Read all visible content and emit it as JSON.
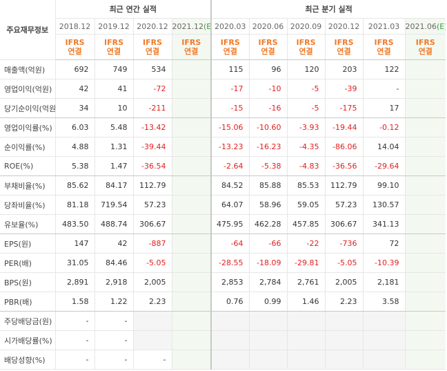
{
  "table": {
    "row_header": "주요재무정보",
    "groups": [
      "최근 연간 실적",
      "최근 분기 실적"
    ],
    "columns": [
      {
        "period": "2018.12",
        "standard": "IFRS",
        "scope": "연결"
      },
      {
        "period": "2019.12",
        "standard": "IFRS",
        "scope": "연결"
      },
      {
        "period": "2020.12",
        "standard": "IFRS",
        "scope": "연결"
      },
      {
        "period": "2021.12",
        "estimate": "(E)",
        "standard": "IFRS",
        "scope": "연결"
      },
      {
        "period": "2020.03",
        "standard": "IFRS",
        "scope": "연결"
      },
      {
        "period": "2020.06",
        "standard": "IFRS",
        "scope": "연결"
      },
      {
        "period": "2020.09",
        "standard": "IFRS",
        "scope": "연결"
      },
      {
        "period": "2020.12",
        "standard": "IFRS",
        "scope": "연결"
      },
      {
        "period": "2021.03",
        "standard": "IFRS",
        "scope": "연결"
      },
      {
        "period": "2021.06",
        "estimate": "(E)",
        "standard": "IFRS",
        "scope": "연결"
      }
    ],
    "rows": [
      {
        "label": "매출액(억원)",
        "cells": [
          "692",
          "749",
          "534",
          null,
          "115",
          "96",
          "120",
          "203",
          "122",
          null
        ]
      },
      {
        "label": "영업이익(억원)",
        "cells": [
          "42",
          "41",
          "-72",
          null,
          "-17",
          "-10",
          "-5",
          "-39",
          "-",
          null
        ]
      },
      {
        "label": "당기순이익(억원)",
        "cells": [
          "34",
          "10",
          "-211",
          null,
          "-15",
          "-16",
          "-5",
          "-175",
          "17",
          null
        ]
      },
      {
        "label": "영업이익률(%)",
        "cells": [
          "6.03",
          "5.48",
          "-13.42",
          null,
          "-15.06",
          "-10.60",
          "-3.93",
          "-19.44",
          "-0.12",
          null
        ]
      },
      {
        "label": "순이익률(%)",
        "cells": [
          "4.88",
          "1.31",
          "-39.44",
          null,
          "-13.23",
          "-16.23",
          "-4.35",
          "-86.06",
          "14.04",
          null
        ]
      },
      {
        "label": "ROE(%)",
        "cells": [
          "5.38",
          "1.47",
          "-36.54",
          null,
          "-2.64",
          "-5.38",
          "-4.83",
          "-36.56",
          "-29.64",
          null
        ]
      },
      {
        "label": "부채비율(%)",
        "cells": [
          "85.62",
          "84.17",
          "112.79",
          null,
          "84.52",
          "85.88",
          "85.53",
          "112.79",
          "99.10",
          null
        ]
      },
      {
        "label": "당좌비율(%)",
        "cells": [
          "81.18",
          "719.54",
          "57.23",
          null,
          "64.07",
          "58.96",
          "59.05",
          "57.23",
          "130.57",
          null
        ]
      },
      {
        "label": "유보율(%)",
        "cells": [
          "483.50",
          "488.74",
          "306.67",
          null,
          "475.95",
          "462.28",
          "457.85",
          "306.67",
          "341.13",
          null
        ]
      },
      {
        "label": "EPS(원)",
        "cells": [
          "147",
          "42",
          "-887",
          null,
          "-64",
          "-66",
          "-22",
          "-736",
          "72",
          null
        ]
      },
      {
        "label": "PER(배)",
        "cells": [
          "31.05",
          "84.46",
          "-5.05",
          null,
          "-28.55",
          "-18.09",
          "-29.81",
          "-5.05",
          "-10.39",
          null
        ]
      },
      {
        "label": "BPS(원)",
        "cells": [
          "2,891",
          "2,918",
          "2,005",
          null,
          "2,853",
          "2,784",
          "2,761",
          "2,005",
          "2,181",
          null
        ]
      },
      {
        "label": "PBR(배)",
        "cells": [
          "1.58",
          "1.22",
          "2.23",
          null,
          "0.76",
          "0.99",
          "1.46",
          "2.23",
          "3.58",
          null
        ]
      },
      {
        "label": "주당배당금(원)",
        "cells": [
          "-",
          "-",
          null,
          null,
          null,
          null,
          null,
          null,
          null,
          null
        ]
      },
      {
        "label": "시가배당률(%)",
        "cells": [
          "-",
          "-",
          null,
          null,
          null,
          null,
          null,
          null,
          null,
          null
        ]
      },
      {
        "label": "배당성향(%)",
        "cells": [
          "-",
          "-",
          "-",
          null,
          null,
          null,
          null,
          null,
          null,
          null
        ]
      }
    ]
  }
}
